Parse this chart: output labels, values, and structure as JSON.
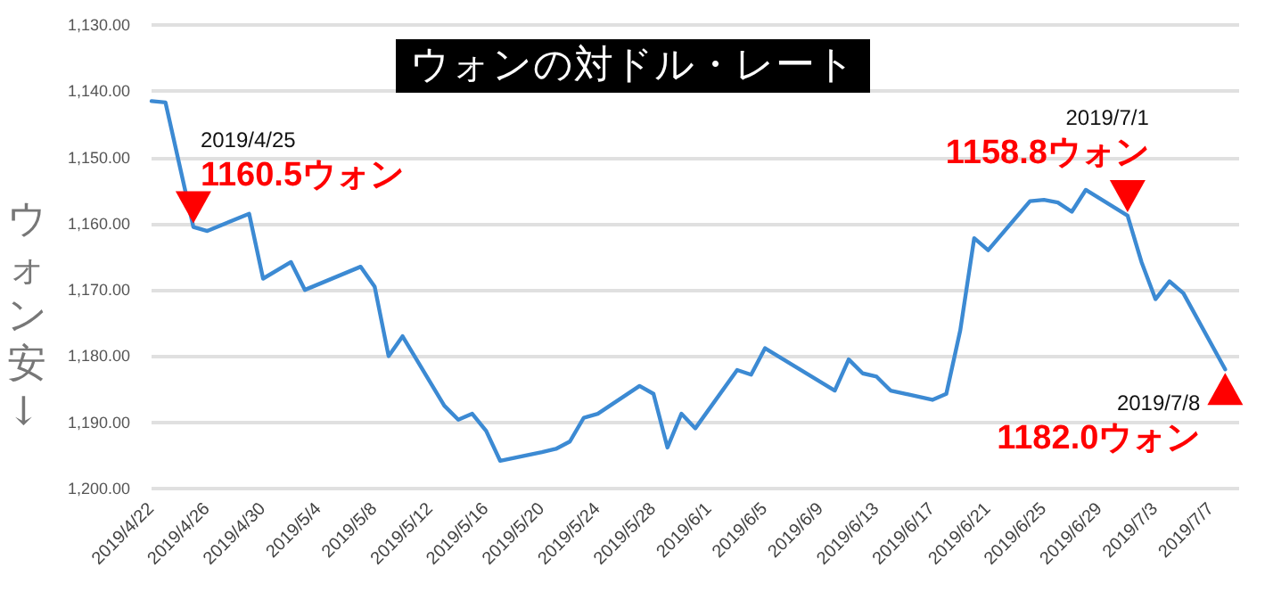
{
  "chart_data": {
    "type": "line",
    "title": "ウォンの対ドル・レート",
    "ylabel": "ウォン安↓",
    "x": [
      "2019-04-22",
      "2019-04-23",
      "2019-04-25",
      "2019-04-26",
      "2019-04-29",
      "2019-04-30",
      "2019-05-02",
      "2019-05-03",
      "2019-05-07",
      "2019-05-08",
      "2019-05-09",
      "2019-05-10",
      "2019-05-13",
      "2019-05-14",
      "2019-05-15",
      "2019-05-16",
      "2019-05-17",
      "2019-05-20",
      "2019-05-21",
      "2019-05-22",
      "2019-05-23",
      "2019-05-24",
      "2019-05-27",
      "2019-05-28",
      "2019-05-29",
      "2019-05-30",
      "2019-05-31",
      "2019-06-03",
      "2019-06-04",
      "2019-06-05",
      "2019-06-10",
      "2019-06-11",
      "2019-06-12",
      "2019-06-13",
      "2019-06-14",
      "2019-06-17",
      "2019-06-18",
      "2019-06-19",
      "2019-06-20",
      "2019-06-21",
      "2019-06-24",
      "2019-06-25",
      "2019-06-26",
      "2019-06-27",
      "2019-06-28",
      "2019-07-01",
      "2019-07-02",
      "2019-07-03",
      "2019-07-04",
      "2019-07-05",
      "2019-07-08"
    ],
    "series": [
      {
        "color": "#3c8ad3",
        "values": [
          1141.5,
          1141.7,
          1160.5,
          1161.1,
          1158.5,
          1168.3,
          1165.8,
          1170,
          1166.5,
          1169.5,
          1180,
          1177,
          1187.5,
          1189.6,
          1188.7,
          1191.3,
          1195.8,
          1194.5,
          1194,
          1192.9,
          1189.3,
          1188.7,
          1184.5,
          1185.7,
          1193.8,
          1188.7,
          1190.9,
          1182.1,
          1182.8,
          1178.8,
          1185.2,
          1180.5,
          1182.6,
          1183.1,
          1185.2,
          1186.6,
          1185.7,
          1176.1,
          1162.2,
          1164,
          1156.6,
          1156.4,
          1156.8,
          1158.2,
          1154.9,
          1158.8,
          1165.8,
          1171.4,
          1168.7,
          1170.5,
          1182.0
        ]
      }
    ],
    "xlim": [
      "2019-04-22",
      "2019-07-09"
    ],
    "xticks": [
      {
        "value": "2019-04-22",
        "label": "2019/4/22"
      },
      {
        "value": "2019-04-26",
        "label": "2019/4/26"
      },
      {
        "value": "2019-04-30",
        "label": "2019/4/30"
      },
      {
        "value": "2019-05-04",
        "label": "2019/5/4"
      },
      {
        "value": "2019-05-08",
        "label": "2019/5/8"
      },
      {
        "value": "2019-05-12",
        "label": "2019/5/12"
      },
      {
        "value": "2019-05-16",
        "label": "2019/5/16"
      },
      {
        "value": "2019-05-20",
        "label": "2019/5/20"
      },
      {
        "value": "2019-05-24",
        "label": "2019/5/24"
      },
      {
        "value": "2019-05-28",
        "label": "2019/5/28"
      },
      {
        "value": "2019-06-01",
        "label": "2019/6/1"
      },
      {
        "value": "2019-06-05",
        "label": "2019/6/5"
      },
      {
        "value": "2019-06-09",
        "label": "2019/6/9"
      },
      {
        "value": "2019-06-13",
        "label": "2019/6/13"
      },
      {
        "value": "2019-06-17",
        "label": "2019/6/17"
      },
      {
        "value": "2019-06-21",
        "label": "2019/6/21"
      },
      {
        "value": "2019-06-25",
        "label": "2019/6/25"
      },
      {
        "value": "2019-06-29",
        "label": "2019/6/29"
      },
      {
        "value": "2019-07-03",
        "label": "2019/7/3"
      },
      {
        "value": "2019-07-07",
        "label": "2019/7/7"
      }
    ],
    "ylim": [
      1200,
      1130
    ],
    "yticks": [
      {
        "value": 1130,
        "label": "1,130.00"
      },
      {
        "value": 1140,
        "label": "1,140.00"
      },
      {
        "value": 1150,
        "label": "1,150.00"
      },
      {
        "value": 1160,
        "label": "1,160.00"
      },
      {
        "value": 1170,
        "label": "1,170.00"
      },
      {
        "value": 1180,
        "label": "1,180.00"
      },
      {
        "value": 1190,
        "label": "1,190.00"
      },
      {
        "value": 1200,
        "label": "1,200.00"
      }
    ],
    "grid": "y",
    "marker": "none",
    "line_style": "solid",
    "annotations": [
      {
        "text": "2019/4/25\n1160.5ウォン",
        "x": "2019-04-25",
        "y": 1160.5
      },
      {
        "text": "2019/7/1\n1158.8ウォン",
        "x": "2019-07-01",
        "y": 1158.8
      },
      {
        "text": "2019/7/8\n1182.0ウォン",
        "x": "2019-07-08",
        "y": 1182.0
      }
    ]
  }
}
